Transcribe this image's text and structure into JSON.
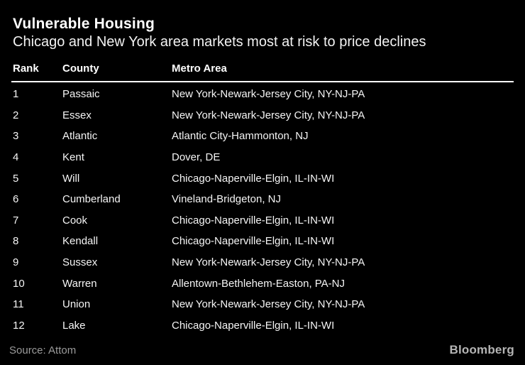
{
  "chart_data": {
    "type": "table",
    "title": "Vulnerable Housing",
    "subtitle": "Chicago and New York area markets most at risk to price declines",
    "columns": [
      "Rank",
      "County",
      "Metro Area"
    ],
    "rows": [
      [
        "1",
        "Passaic",
        "New York-Newark-Jersey City, NY-NJ-PA"
      ],
      [
        "2",
        "Essex",
        "New York-Newark-Jersey City, NY-NJ-PA"
      ],
      [
        "3",
        "Atlantic",
        "Atlantic City-Hammonton, NJ"
      ],
      [
        "4",
        "Kent",
        "Dover, DE"
      ],
      [
        "5",
        "Will",
        "Chicago-Naperville-Elgin, IL-IN-WI"
      ],
      [
        "6",
        "Cumberland",
        "Vineland-Bridgeton, NJ"
      ],
      [
        "7",
        "Cook",
        "Chicago-Naperville-Elgin, IL-IN-WI"
      ],
      [
        "8",
        "Kendall",
        "Chicago-Naperville-Elgin, IL-IN-WI"
      ],
      [
        "9",
        "Sussex",
        "New York-Newark-Jersey City, NY-NJ-PA"
      ],
      [
        "10",
        "Warren",
        "Allentown-Bethlehem-Easton, PA-NJ"
      ],
      [
        "11",
        "Union",
        "New York-Newark-Jersey City, NY-NJ-PA"
      ],
      [
        "12",
        "Lake",
        "Chicago-Naperville-Elgin, IL-IN-WI"
      ]
    ],
    "source": "Source: Attom",
    "brand": "Bloomberg",
    "layout": {
      "grid": "off",
      "legend": "none"
    },
    "colors": {
      "background": "#000000",
      "title_text": "#ffffff",
      "row_text": "#f5f5f5",
      "header_rule": "#ffffff",
      "source_text": "#9b9b9b",
      "brand_text": "#b5b5b5"
    }
  }
}
